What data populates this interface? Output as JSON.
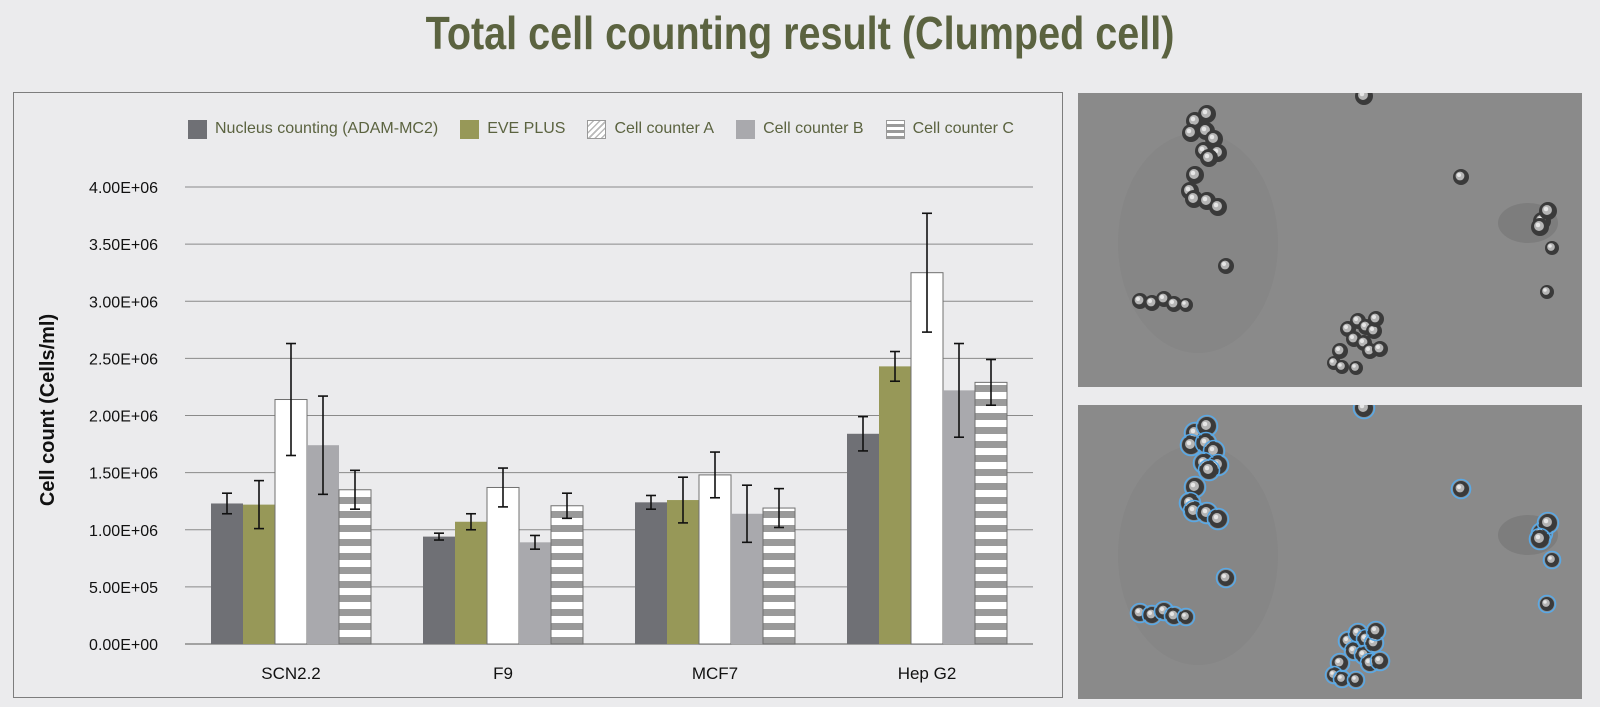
{
  "page": {
    "title": "Total cell counting result (Clumped cell)"
  },
  "colors": {
    "title": "#5b6340",
    "nucleus": "#6f7075",
    "eve": "#979858",
    "counterA": "#ffffff",
    "counterB": "#a9a9ad",
    "counterC_stripe": "#9a9a9a",
    "counterC_bg": "#ffffff",
    "grid": "#8a8a8a",
    "circle": "#5aa9e6"
  },
  "legend": [
    {
      "label": "Nucleus counting (ADAM-MC2)",
      "key": "nucleus"
    },
    {
      "label": "EVE PLUS",
      "key": "eve"
    },
    {
      "label": "Cell counter A",
      "key": "counterA"
    },
    {
      "label": "Cell counter B",
      "key": "counterB"
    },
    {
      "label": "Cell counter C",
      "key": "counterC"
    }
  ],
  "chart_data": {
    "type": "bar",
    "title": "Total cell counting result (Clumped cell)",
    "xlabel": "",
    "ylabel": "Cell count (Cells/ml)",
    "ylim": [
      0,
      4000000
    ],
    "yticks": [
      0,
      500000,
      1000000,
      1500000,
      2000000,
      2500000,
      3000000,
      3500000,
      4000000
    ],
    "ytick_labels": [
      "0.00E+00",
      "5.00E+05",
      "1.00E+06",
      "1.50E+06",
      "2.00E+06",
      "2.50E+06",
      "3.00E+06",
      "3.50E+06",
      "4.00E+06"
    ],
    "categories": [
      "SCN2.2",
      "F9",
      "MCF7",
      "Hep G2"
    ],
    "grid": true,
    "legend_position": "top",
    "series": [
      {
        "name": "Nucleus counting (ADAM-MC2)",
        "key": "nucleus",
        "values": [
          1230000,
          940000,
          1240000,
          1840000
        ],
        "errors": [
          90000,
          30000,
          60000,
          150000
        ]
      },
      {
        "name": "EVE PLUS",
        "key": "eve",
        "values": [
          1220000,
          1070000,
          1260000,
          2430000
        ],
        "errors": [
          210000,
          70000,
          200000,
          130000
        ]
      },
      {
        "name": "Cell counter A",
        "key": "counterA",
        "values": [
          2140000,
          1370000,
          1480000,
          3250000
        ],
        "errors": [
          490000,
          170000,
          200000,
          520000
        ]
      },
      {
        "name": "Cell counter B",
        "key": "counterB",
        "values": [
          1740000,
          890000,
          1140000,
          2220000
        ],
        "errors": [
          430000,
          60000,
          250000,
          410000
        ]
      },
      {
        "name": "Cell counter C",
        "key": "counterC",
        "values": [
          1350000,
          1210000,
          1190000,
          2290000
        ],
        "errors": [
          170000,
          110000,
          170000,
          200000
        ]
      }
    ]
  },
  "micrographs": [
    {
      "name": "raw-micrograph",
      "annotated": false
    },
    {
      "name": "annotated-micrograph",
      "annotated": true
    }
  ]
}
